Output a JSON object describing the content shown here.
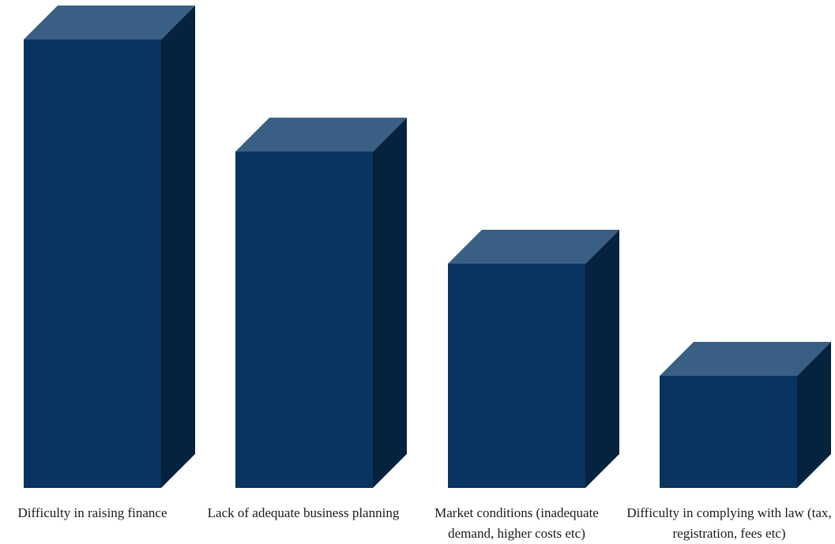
{
  "colors": {
    "front": "#08345f",
    "top": "#3a5f84",
    "side": "#05223e"
  },
  "chart_data": {
    "type": "bar",
    "categories": [
      "Difficulty in raising finance",
      "Lack of adequate business planning",
      "Market conditions (inadequate demand, higher costs etc)",
      "Difficulty in complying with law (tax, registration, fees etc)"
    ],
    "values": [
      4,
      3,
      2,
      1
    ],
    "ylim": [
      0,
      4
    ]
  }
}
